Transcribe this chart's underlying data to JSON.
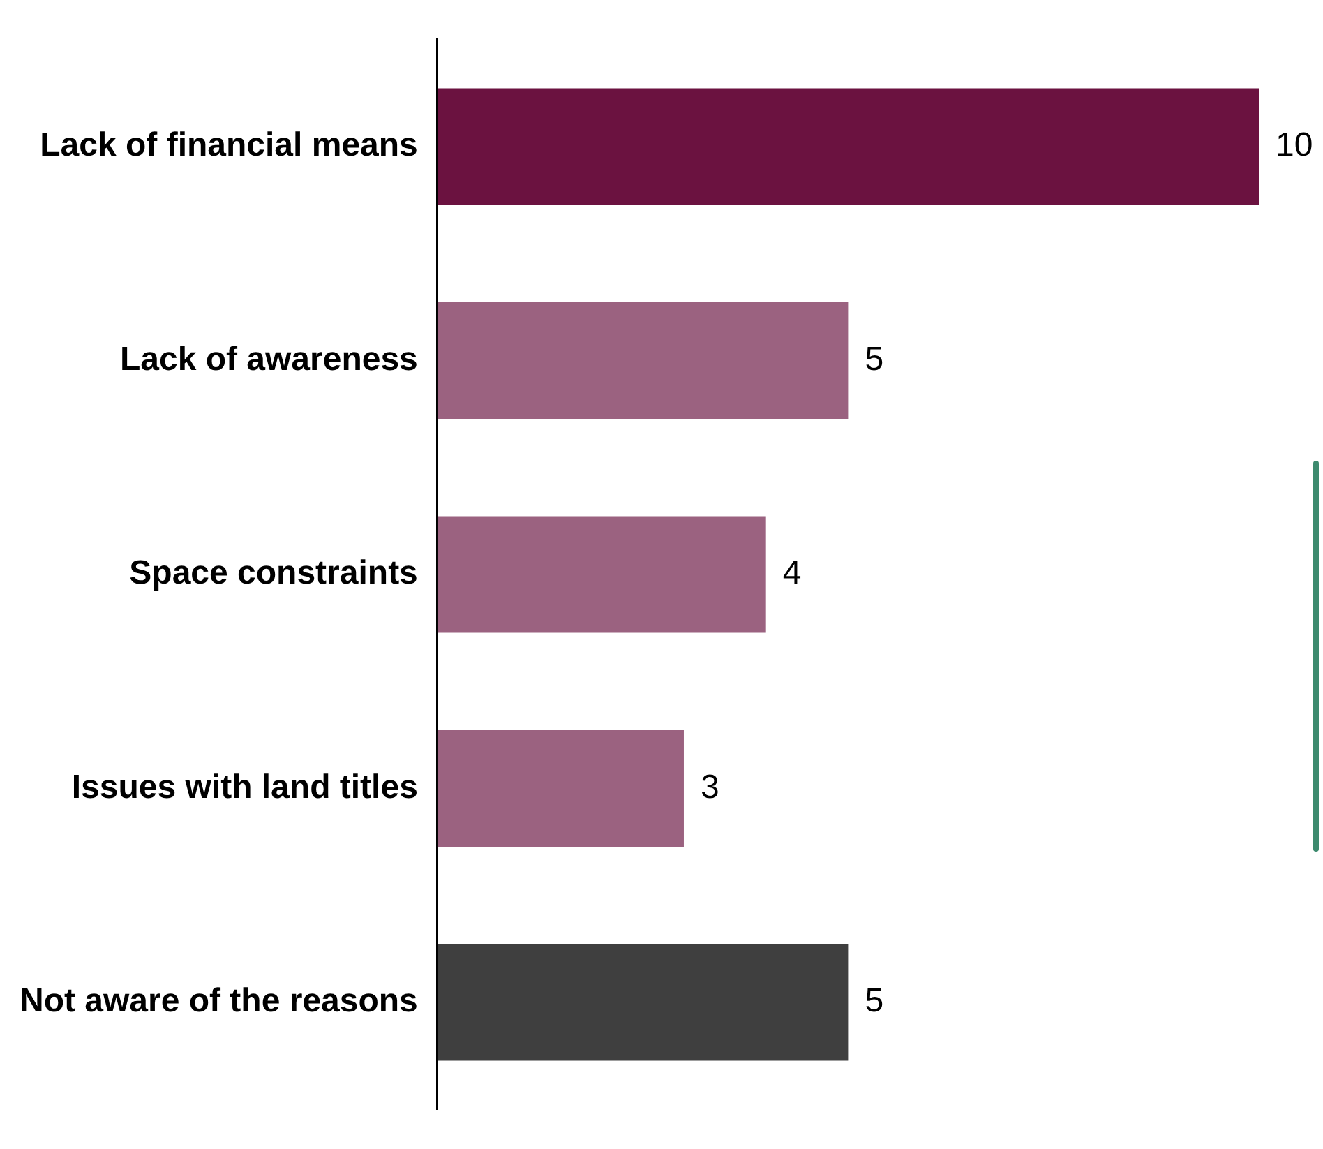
{
  "chart_data": {
    "type": "bar",
    "orientation": "horizontal",
    "categories": [
      "Lack of financial means",
      "Lack of awareness",
      "Space constraints",
      "Issues with land titles",
      "Not aware of the reasons"
    ],
    "values": [
      10,
      5,
      4,
      3,
      5
    ],
    "colors": [
      "#6b1240",
      "#9b6280",
      "#9b6280",
      "#9b6280",
      "#3f3f3f"
    ],
    "data_labels": true
  }
}
